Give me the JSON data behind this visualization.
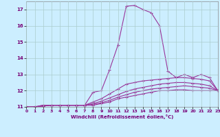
{
  "xlabel": "Windchill (Refroidissement éolien,°C)",
  "bg_color": "#cceeff",
  "grid_color": "#aacccc",
  "line_color": "#993399",
  "xlim": [
    0,
    23
  ],
  "ylim": [
    11,
    17.5
  ],
  "yticks": [
    11,
    12,
    13,
    14,
    15,
    16,
    17
  ],
  "xticks": [
    0,
    1,
    2,
    3,
    4,
    5,
    6,
    7,
    8,
    9,
    10,
    11,
    12,
    13,
    14,
    15,
    16,
    17,
    18,
    19,
    20,
    21,
    22,
    23
  ],
  "series": [
    [
      11.0,
      11.0,
      11.1,
      11.1,
      11.1,
      11.1,
      11.1,
      11.1,
      11.9,
      12.0,
      13.3,
      14.8,
      17.2,
      17.25,
      17.0,
      16.8,
      16.0,
      13.2,
      12.8,
      13.0,
      12.8,
      13.0,
      12.8,
      12.0
    ],
    [
      11.0,
      11.0,
      11.1,
      11.1,
      11.1,
      11.1,
      11.1,
      11.1,
      11.3,
      11.5,
      11.8,
      12.1,
      12.4,
      12.5,
      12.6,
      12.65,
      12.7,
      12.75,
      12.8,
      12.8,
      12.75,
      12.7,
      12.6,
      12.0
    ],
    [
      11.0,
      11.0,
      11.05,
      11.1,
      11.1,
      11.1,
      11.1,
      11.1,
      11.2,
      11.35,
      11.55,
      11.75,
      11.95,
      12.1,
      12.2,
      12.3,
      12.4,
      12.45,
      12.5,
      12.5,
      12.45,
      12.4,
      12.3,
      12.0
    ],
    [
      11.0,
      11.0,
      11.05,
      11.1,
      11.1,
      11.1,
      11.1,
      11.1,
      11.15,
      11.25,
      11.4,
      11.6,
      11.75,
      11.9,
      12.0,
      12.1,
      12.15,
      12.2,
      12.25,
      12.3,
      12.25,
      12.2,
      12.15,
      12.0
    ],
    [
      11.0,
      11.0,
      11.05,
      11.1,
      11.1,
      11.1,
      11.1,
      11.1,
      11.1,
      11.2,
      11.3,
      11.5,
      11.6,
      11.7,
      11.8,
      11.9,
      12.0,
      12.0,
      12.05,
      12.05,
      12.0,
      12.0,
      12.0,
      12.0
    ]
  ]
}
